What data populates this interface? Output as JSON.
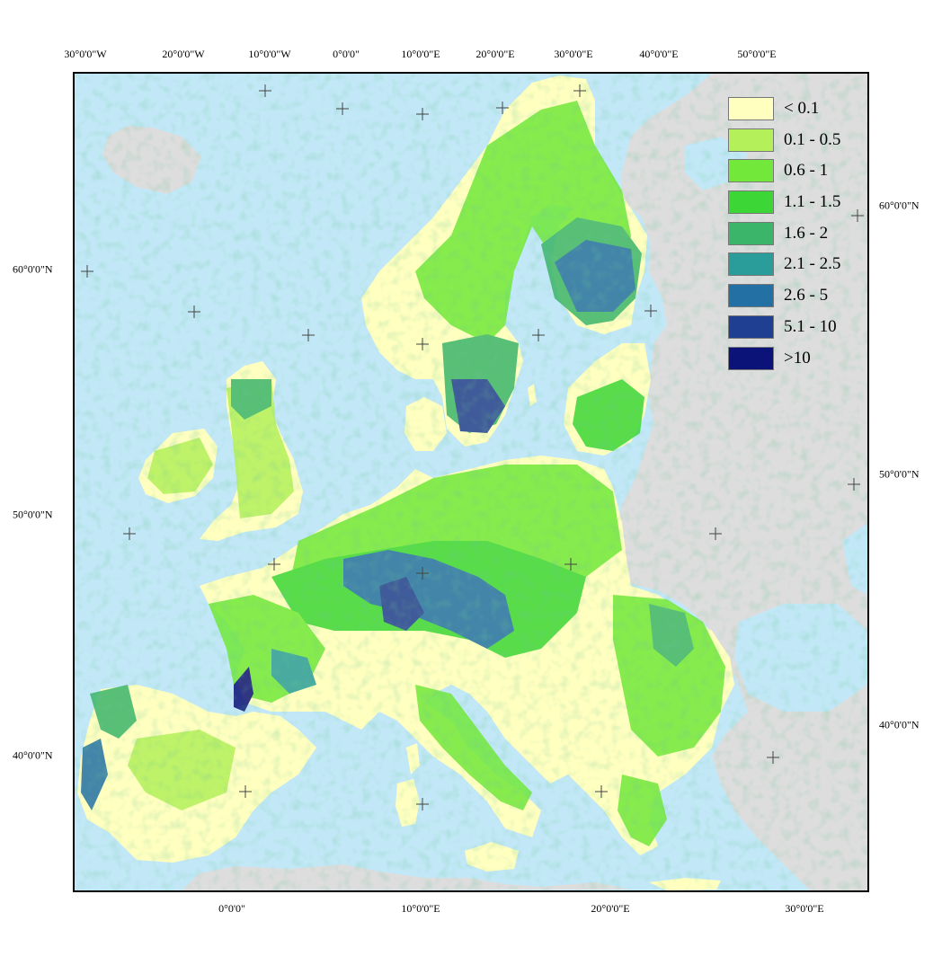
{
  "axes": {
    "top": [
      "30°0'0\"W",
      "20°0'0\"W",
      "10°0'0\"W",
      "0°0'0\"",
      "10°0'0\"E",
      "20°0'0\"E",
      "30°0'0\"E",
      "40°0'0\"E",
      "50°0'0\"E"
    ],
    "bottom": [
      "0°0'0\"",
      "10°0'0\"E",
      "20°0'0\"E",
      "30°0'0\"E"
    ],
    "left": [
      "60°0'0\"N",
      "50°0'0\"N",
      "40°0'0\"N"
    ],
    "right": [
      "60°0'0\"N",
      "50°0'0\"N",
      "40°0'0\"N"
    ]
  },
  "legend": [
    {
      "label": "< 0.1",
      "color": "#ffffc0"
    },
    {
      "label": "0.1 - 0.5",
      "color": "#b3f05a"
    },
    {
      "label": "0.6 - 1",
      "color": "#72e83a"
    },
    {
      "label": "1.1 - 1.5",
      "color": "#3cd636"
    },
    {
      "label": "1.6 - 2",
      "color": "#3bb56a"
    },
    {
      "label": "2.1 - 2.5",
      "color": "#2a9d9a"
    },
    {
      "label": "2.6 - 5",
      "color": "#2370a5"
    },
    {
      "label": "5.1 - 10",
      "color": "#1f3f93"
    },
    {
      "label": ">10",
      "color": "#0c1378"
    }
  ],
  "colors": {
    "sea": "#c2e8f7",
    "non_eu_land": "#dddddd",
    "grid_cross": "#444444"
  }
}
